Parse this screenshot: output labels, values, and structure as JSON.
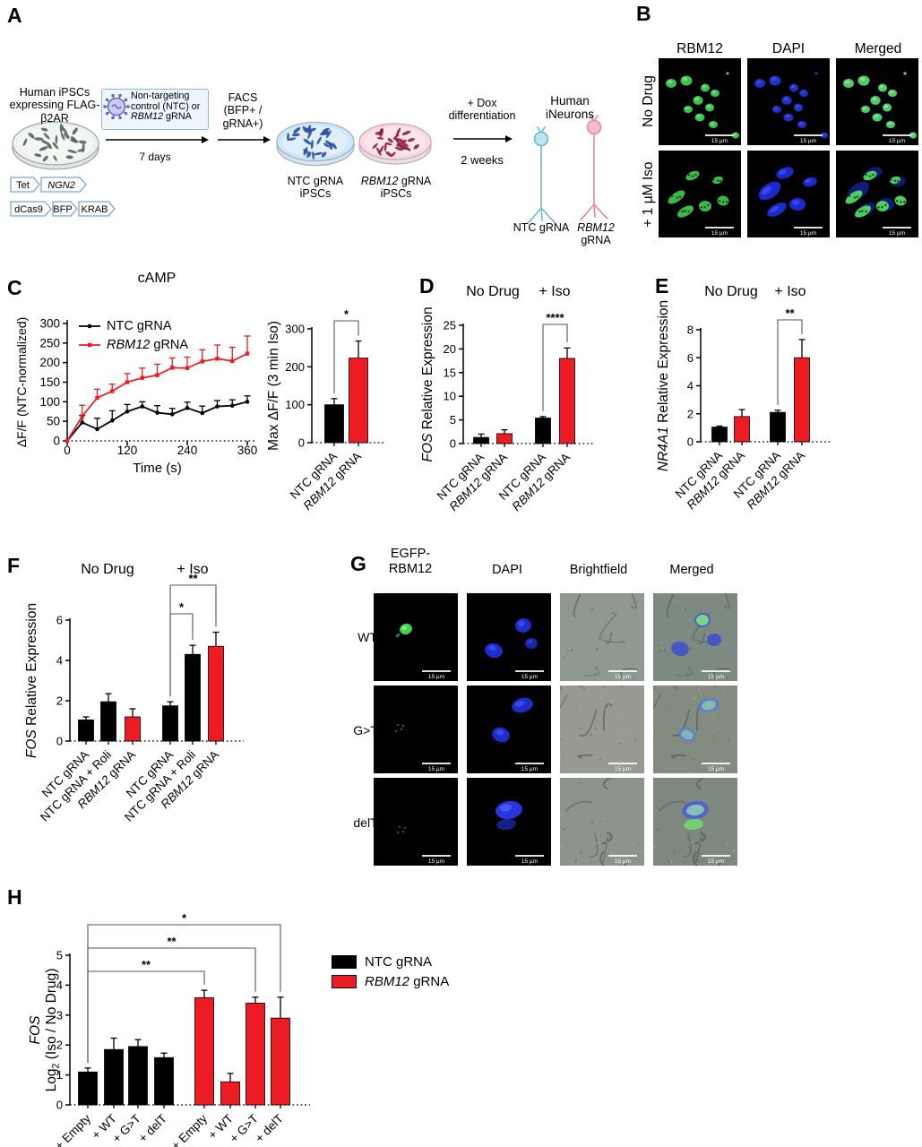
{
  "colors": {
    "black": "#000000",
    "red": "#ed1c24",
    "green_signal": "#3ec24b",
    "blue_signal": "#2233d0"
  },
  "panels": {
    "A": {
      "label": "A",
      "ipsc_caption_line1": "Human iPSCs",
      "ipsc_caption_line2": "expressing FLAG-β2AR",
      "construct1": {
        "promoter": "Tet",
        "gene": "NGN2"
      },
      "construct2": [
        "dCas9",
        "BFP",
        "KRAB"
      ],
      "virus_box": {
        "line1": "Non-targeting",
        "line2": "control (NTC) or",
        "gene": "RBM12",
        "line3_rest": " gRNA"
      },
      "arrow1_duration": "7 days",
      "facs_line1": "FACS",
      "facs_line2": "(BFP+ / gRNA+)",
      "dish_ntc_line1": "NTC gRNA",
      "dish_ntc_line2": "iPSCs",
      "dish_rbm12_gene": "RBM12",
      "dish_rbm12_rest": " gRNA",
      "dish_rbm12_line2": "iPSCs",
      "dox_line1": "+ Dox",
      "dox_line2": "differentiation",
      "dox_duration": "2 weeks",
      "ineurons_title": "Human iNeurons",
      "neuron_ntc_label": "NTC gRNA",
      "neuron_rbm12_gene": "RBM12",
      "neuron_rbm12_rest": " gRNA"
    },
    "B": {
      "label": "B",
      "col_headers": [
        "RBM12",
        "DAPI",
        "Merged"
      ],
      "row_headers": [
        "No Drug",
        "+ 1 µM Iso"
      ],
      "scalebar": "15 µm"
    },
    "C": {
      "label": "C",
      "title": "cAMP"
    },
    "D": {
      "label": "D"
    },
    "E": {
      "label": "E"
    },
    "F": {
      "label": "F"
    },
    "G": {
      "label": "G",
      "col_header1_line1": "EGFP-",
      "col_header1_line2": "RBM12",
      "col_headers_rest": [
        "DAPI",
        "Brightfield",
        "Merged"
      ],
      "row_headers": [
        "WT",
        "G>T",
        "delT"
      ],
      "scalebar": "15 µm"
    },
    "H": {
      "label": "H",
      "legend": {
        "ntc_label": "NTC gRNA",
        "rbm12_gene": "RBM12",
        "rbm12_rest": " gRNA"
      }
    }
  },
  "chart_data": [
    {
      "id": "camp_line",
      "type": "line",
      "title": "cAMP",
      "xlabel": "Time (s)",
      "ylabel": "ΔF/F (NTC-normalized)",
      "x": [
        0,
        30,
        60,
        90,
        120,
        150,
        180,
        210,
        240,
        270,
        300,
        330,
        360
      ],
      "xticks": [
        0,
        120,
        240,
        360
      ],
      "ylim": [
        0,
        300
      ],
      "yticks": [
        0,
        50,
        100,
        150,
        200,
        250,
        300
      ],
      "legend_position": "top-left",
      "grid": false,
      "series": [
        {
          "name": "NTC gRNA",
          "color": "#000000",
          "marker": "circle",
          "values": [
            0,
            47,
            30,
            52,
            75,
            88,
            72,
            68,
            84,
            71,
            88,
            90,
            100
          ],
          "errors": [
            0,
            18,
            28,
            25,
            18,
            12,
            18,
            15,
            15,
            18,
            15,
            15,
            15
          ]
        },
        {
          "name": "RBM12 gRNA",
          "color": "#ed1c24",
          "marker": "square",
          "values": [
            0,
            63,
            110,
            127,
            150,
            161,
            168,
            187,
            186,
            203,
            210,
            204,
            223
          ],
          "errors": [
            0,
            28,
            22,
            18,
            22,
            25,
            28,
            25,
            28,
            30,
            35,
            35,
            45
          ]
        }
      ]
    },
    {
      "id": "camp_max",
      "type": "bar",
      "ylabel_parts": [
        {
          "t": "Max ΔF/F (3 min Iso)"
        }
      ],
      "categories": [
        "NTC gRNA",
        "RBM12 gRNA"
      ],
      "values": [
        100,
        223
      ],
      "errors": [
        16,
        45
      ],
      "colors": [
        "#000000",
        "#ed1c24"
      ],
      "ylim": [
        0,
        300
      ],
      "yticks": [
        0,
        100,
        200,
        300
      ],
      "sig": [
        {
          "from": 0,
          "to": 1,
          "label": "*"
        }
      ]
    },
    {
      "id": "fos_iso",
      "type": "bar",
      "group_headers": [
        "No Drug",
        "+ Iso"
      ],
      "ylabel_parts": [
        {
          "t": "FOS",
          "i": true
        },
        {
          "t": " Relative Expression"
        }
      ],
      "categories": [
        "NTC gRNA",
        "RBM12 gRNA",
        "NTC gRNA",
        "RBM12 gRNA"
      ],
      "values": [
        1.3,
        2.1,
        5.4,
        18
      ],
      "errors": [
        0.7,
        0.8,
        0.3,
        2.2
      ],
      "colors": [
        "#000000",
        "#ed1c24",
        "#000000",
        "#ed1c24"
      ],
      "ylim": [
        0,
        25
      ],
      "yticks": [
        0,
        5,
        10,
        15,
        20,
        25
      ],
      "sig": [
        {
          "from": 2,
          "to": 3,
          "label": "****"
        }
      ]
    },
    {
      "id": "nr4a1_iso",
      "type": "bar",
      "group_headers": [
        "No Drug",
        "+ Iso"
      ],
      "ylabel_parts": [
        {
          "t": "NR4A1",
          "i": true
        },
        {
          "t": " Relative Expression"
        }
      ],
      "categories": [
        "NTC gRNA",
        "RBM12 gRNA",
        "NTC gRNA",
        "RBM12 gRNA"
      ],
      "values": [
        1.05,
        1.8,
        2.1,
        6.0
      ],
      "errors": [
        0.07,
        0.5,
        0.15,
        1.3
      ],
      "colors": [
        "#000000",
        "#ed1c24",
        "#000000",
        "#ed1c24"
      ],
      "ylim": [
        0,
        8
      ],
      "yticks": [
        0,
        2,
        4,
        6,
        8
      ],
      "sig": [
        {
          "from": 2,
          "to": 3,
          "label": "**"
        }
      ]
    },
    {
      "id": "fos_roli",
      "type": "bar",
      "group_headers": [
        "No Drug",
        "+ Iso"
      ],
      "ylabel_parts": [
        {
          "t": "FOS",
          "i": true
        },
        {
          "t": " Relative Expression"
        }
      ],
      "categories": [
        "NTC gRNA",
        "NTC gRNA + Roli",
        "RBM12 gRNA",
        "NTC gRNA",
        "NTC gRNA + Roli",
        "RBM12 gRNA"
      ],
      "values": [
        1.05,
        1.95,
        1.2,
        1.75,
        4.3,
        4.7
      ],
      "errors": [
        0.15,
        0.4,
        0.4,
        0.2,
        0.45,
        0.7
      ],
      "colors": [
        "#000000",
        "#000000",
        "#ed1c24",
        "#000000",
        "#000000",
        "#ed1c24"
      ],
      "ylim": [
        0,
        6
      ],
      "yticks": [
        0,
        2,
        4,
        6
      ],
      "sig": [
        {
          "from": 3,
          "to": 4,
          "label": "*"
        },
        {
          "from": 3,
          "to": 5,
          "label": "**"
        }
      ]
    },
    {
      "id": "fos_rescue",
      "type": "bar",
      "ylabel_lines": [
        [
          {
            "t": "FOS",
            "i": true
          }
        ],
        [
          {
            "t": "Log"
          },
          {
            "t": "2",
            "sub": true
          },
          {
            "t": " (Iso / No Drug)",
            "dy": true
          }
        ]
      ],
      "categories": [
        "+ Empty",
        "+ WT",
        "+ G>T",
        "+ delT",
        "+ Empty",
        "+ WT",
        "+ G>T",
        "+ delT"
      ],
      "values": [
        1.1,
        1.85,
        1.95,
        1.58,
        3.58,
        0.77,
        3.4,
        2.9
      ],
      "errors": [
        0.13,
        0.38,
        0.23,
        0.15,
        0.25,
        0.28,
        0.2,
        0.7
      ],
      "colors": [
        "#000000",
        "#000000",
        "#000000",
        "#000000",
        "#ed1c24",
        "#ed1c24",
        "#ed1c24",
        "#ed1c24"
      ],
      "ylim": [
        0,
        5
      ],
      "yticks": [
        0,
        1,
        2,
        3,
        4,
        5
      ],
      "sig": [
        {
          "from": 0,
          "to": 4,
          "label": "**"
        },
        {
          "from": 0,
          "to": 6,
          "label": "**"
        },
        {
          "from": 0,
          "to": 7,
          "label": "*"
        }
      ]
    }
  ]
}
